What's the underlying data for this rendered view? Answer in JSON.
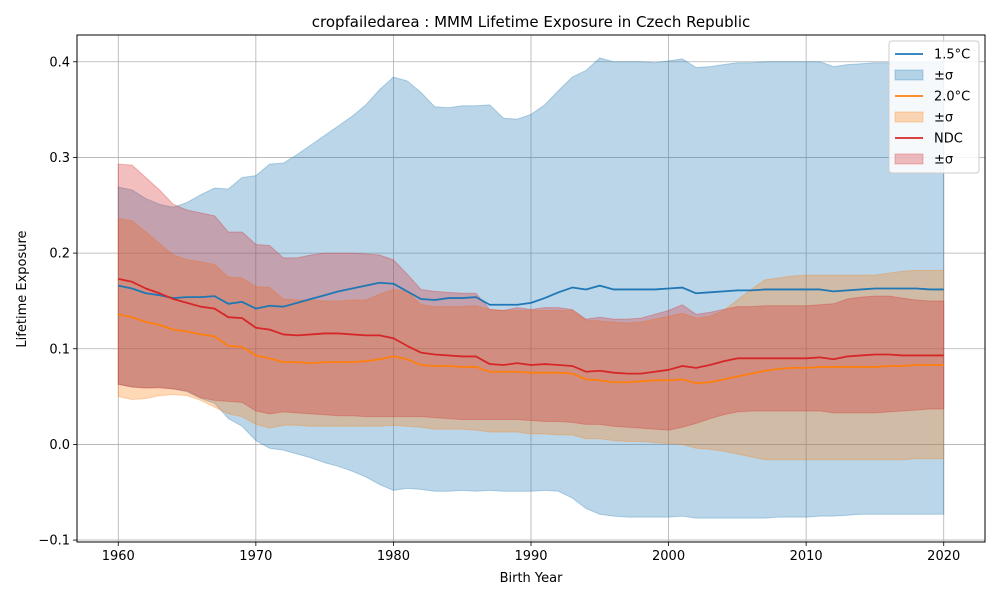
{
  "chart_data": {
    "type": "line",
    "title": "cropfailedarea : MMM Lifetime Exposure in Czech Republic",
    "xlabel": "Birth Year",
    "ylabel": "Lifetime Exposure",
    "xlim": [
      1957,
      2023
    ],
    "ylim": [
      -0.102,
      0.428
    ],
    "x_ticks": [
      1960,
      1970,
      1980,
      1990,
      2000,
      2010,
      2020
    ],
    "y_ticks": [
      -0.1,
      0.0,
      0.1,
      0.2,
      0.3,
      0.4
    ],
    "y_tick_labels": [
      "−0.1",
      "0.0",
      "0.1",
      "0.2",
      "0.3",
      "0.4"
    ],
    "grid": true,
    "legend_position": "top-right",
    "x": [
      1960,
      1961,
      1962,
      1963,
      1964,
      1965,
      1966,
      1967,
      1968,
      1969,
      1970,
      1971,
      1972,
      1973,
      1974,
      1975,
      1976,
      1977,
      1978,
      1979,
      1980,
      1981,
      1982,
      1983,
      1984,
      1985,
      1986,
      1987,
      1988,
      1989,
      1990,
      1991,
      1992,
      1993,
      1994,
      1995,
      1996,
      1997,
      1998,
      1999,
      2000,
      2001,
      2002,
      2003,
      2004,
      2005,
      2006,
      2007,
      2008,
      2009,
      2010,
      2011,
      2012,
      2013,
      2014,
      2015,
      2016,
      2017,
      2018,
      2019,
      2020
    ],
    "series": [
      {
        "name": "1.5°C",
        "band_label": "±σ",
        "color": "#1f77b4",
        "band_color": "#1f77b4",
        "mean": [
          0.166,
          0.163,
          0.158,
          0.156,
          0.153,
          0.154,
          0.154,
          0.155,
          0.147,
          0.149,
          0.142,
          0.145,
          0.144,
          0.148,
          0.152,
          0.156,
          0.16,
          0.163,
          0.166,
          0.169,
          0.168,
          0.16,
          0.152,
          0.151,
          0.153,
          0.153,
          0.154,
          0.146,
          0.146,
          0.146,
          0.148,
          0.153,
          0.159,
          0.164,
          0.162,
          0.166,
          0.162,
          0.162,
          0.162,
          0.162,
          0.163,
          0.164,
          0.158,
          0.159,
          0.16,
          0.161,
          0.161,
          0.162,
          0.162,
          0.162,
          0.162,
          0.162,
          0.16,
          0.161,
          0.162,
          0.163,
          0.163,
          0.163,
          0.163,
          0.162,
          0.162
        ],
        "upper": [
          0.269,
          0.266,
          0.257,
          0.251,
          0.248,
          0.253,
          0.261,
          0.268,
          0.267,
          0.279,
          0.281,
          0.293,
          0.294,
          0.303,
          0.313,
          0.323,
          0.333,
          0.343,
          0.355,
          0.371,
          0.384,
          0.38,
          0.368,
          0.353,
          0.352,
          0.354,
          0.354,
          0.355,
          0.341,
          0.34,
          0.345,
          0.355,
          0.37,
          0.384,
          0.391,
          0.404,
          0.4,
          0.4,
          0.4,
          0.399,
          0.401,
          0.403,
          0.394,
          0.395,
          0.397,
          0.399,
          0.399,
          0.4,
          0.4,
          0.4,
          0.4,
          0.4,
          0.395,
          0.397,
          0.398,
          0.399,
          0.399,
          0.399,
          0.399,
          0.399,
          0.399
        ],
        "lower": [
          0.063,
          0.06,
          0.059,
          0.06,
          0.058,
          0.055,
          0.048,
          0.043,
          0.027,
          0.019,
          0.004,
          -0.004,
          -0.006,
          -0.01,
          -0.014,
          -0.019,
          -0.023,
          -0.028,
          -0.034,
          -0.042,
          -0.048,
          -0.046,
          -0.047,
          -0.049,
          -0.049,
          -0.048,
          -0.049,
          -0.048,
          -0.049,
          -0.049,
          -0.049,
          -0.048,
          -0.049,
          -0.056,
          -0.067,
          -0.073,
          -0.075,
          -0.076,
          -0.076,
          -0.076,
          -0.076,
          -0.075,
          -0.077,
          -0.077,
          -0.077,
          -0.077,
          -0.077,
          -0.077,
          -0.076,
          -0.076,
          -0.076,
          -0.075,
          -0.075,
          -0.074,
          -0.073,
          -0.073,
          -0.073,
          -0.073,
          -0.073,
          -0.073,
          -0.073
        ]
      },
      {
        "name": "2.0°C",
        "band_label": "±σ",
        "color": "#ff7f0e",
        "band_color": "#ff7f0e",
        "mean": [
          0.136,
          0.133,
          0.128,
          0.125,
          0.12,
          0.118,
          0.115,
          0.113,
          0.103,
          0.102,
          0.093,
          0.09,
          0.086,
          0.086,
          0.085,
          0.086,
          0.086,
          0.086,
          0.087,
          0.089,
          0.092,
          0.089,
          0.083,
          0.082,
          0.082,
          0.081,
          0.081,
          0.076,
          0.076,
          0.076,
          0.075,
          0.075,
          0.075,
          0.074,
          0.068,
          0.067,
          0.065,
          0.065,
          0.066,
          0.067,
          0.067,
          0.068,
          0.064,
          0.065,
          0.068,
          0.071,
          0.074,
          0.077,
          0.079,
          0.08,
          0.08,
          0.081,
          0.081,
          0.081,
          0.081,
          0.081,
          0.082,
          0.082,
          0.083,
          0.083,
          0.083
        ],
        "upper": [
          0.236,
          0.234,
          0.222,
          0.21,
          0.198,
          0.193,
          0.191,
          0.188,
          0.175,
          0.174,
          0.165,
          0.164,
          0.152,
          0.151,
          0.151,
          0.15,
          0.15,
          0.151,
          0.151,
          0.157,
          0.162,
          0.16,
          0.146,
          0.144,
          0.144,
          0.144,
          0.145,
          0.141,
          0.14,
          0.14,
          0.14,
          0.14,
          0.14,
          0.14,
          0.13,
          0.129,
          0.128,
          0.127,
          0.128,
          0.131,
          0.134,
          0.137,
          0.132,
          0.134,
          0.14,
          0.151,
          0.162,
          0.172,
          0.174,
          0.176,
          0.177,
          0.177,
          0.177,
          0.177,
          0.177,
          0.177,
          0.179,
          0.181,
          0.182,
          0.182,
          0.182
        ],
        "lower": [
          0.05,
          0.047,
          0.048,
          0.051,
          0.052,
          0.051,
          0.046,
          0.039,
          0.032,
          0.029,
          0.021,
          0.017,
          0.02,
          0.02,
          0.019,
          0.019,
          0.019,
          0.019,
          0.019,
          0.019,
          0.02,
          0.019,
          0.018,
          0.016,
          0.016,
          0.016,
          0.015,
          0.013,
          0.013,
          0.013,
          0.011,
          0.011,
          0.01,
          0.01,
          0.006,
          0.006,
          0.004,
          0.003,
          0.003,
          0.002,
          0.001,
          0.0,
          -0.004,
          -0.005,
          -0.007,
          -0.01,
          -0.013,
          -0.016,
          -0.016,
          -0.016,
          -0.016,
          -0.016,
          -0.016,
          -0.016,
          -0.016,
          -0.016,
          -0.016,
          -0.016,
          -0.015,
          -0.015,
          -0.015
        ]
      },
      {
        "name": "NDC",
        "band_label": "±σ",
        "color": "#d62728",
        "band_color": "#d62728",
        "mean": [
          0.173,
          0.17,
          0.163,
          0.158,
          0.152,
          0.148,
          0.144,
          0.142,
          0.133,
          0.132,
          0.122,
          0.12,
          0.115,
          0.114,
          0.115,
          0.116,
          0.116,
          0.115,
          0.114,
          0.114,
          0.111,
          0.103,
          0.096,
          0.094,
          0.093,
          0.092,
          0.092,
          0.084,
          0.083,
          0.085,
          0.083,
          0.084,
          0.083,
          0.082,
          0.076,
          0.077,
          0.075,
          0.074,
          0.074,
          0.076,
          0.078,
          0.082,
          0.08,
          0.083,
          0.087,
          0.09,
          0.09,
          0.09,
          0.09,
          0.09,
          0.09,
          0.091,
          0.089,
          0.092,
          0.093,
          0.094,
          0.094,
          0.093,
          0.093,
          0.093,
          0.093
        ],
        "upper": [
          0.293,
          0.292,
          0.279,
          0.266,
          0.251,
          0.245,
          0.242,
          0.239,
          0.222,
          0.222,
          0.209,
          0.208,
          0.195,
          0.195,
          0.198,
          0.2,
          0.2,
          0.2,
          0.199,
          0.198,
          0.193,
          0.178,
          0.162,
          0.16,
          0.159,
          0.158,
          0.158,
          0.141,
          0.14,
          0.143,
          0.141,
          0.143,
          0.143,
          0.141,
          0.131,
          0.133,
          0.131,
          0.131,
          0.132,
          0.136,
          0.14,
          0.146,
          0.136,
          0.138,
          0.141,
          0.144,
          0.144,
          0.145,
          0.145,
          0.145,
          0.145,
          0.146,
          0.147,
          0.152,
          0.154,
          0.155,
          0.155,
          0.153,
          0.151,
          0.15,
          0.15
        ],
        "lower": [
          0.063,
          0.06,
          0.059,
          0.059,
          0.058,
          0.056,
          0.049,
          0.046,
          0.045,
          0.044,
          0.035,
          0.032,
          0.034,
          0.033,
          0.032,
          0.031,
          0.03,
          0.03,
          0.029,
          0.029,
          0.029,
          0.029,
          0.029,
          0.028,
          0.027,
          0.026,
          0.026,
          0.026,
          0.026,
          0.026,
          0.025,
          0.024,
          0.024,
          0.023,
          0.021,
          0.021,
          0.019,
          0.018,
          0.017,
          0.016,
          0.015,
          0.018,
          0.022,
          0.027,
          0.031,
          0.034,
          0.035,
          0.035,
          0.035,
          0.035,
          0.035,
          0.035,
          0.033,
          0.033,
          0.033,
          0.033,
          0.034,
          0.035,
          0.036,
          0.037,
          0.037
        ]
      }
    ]
  }
}
